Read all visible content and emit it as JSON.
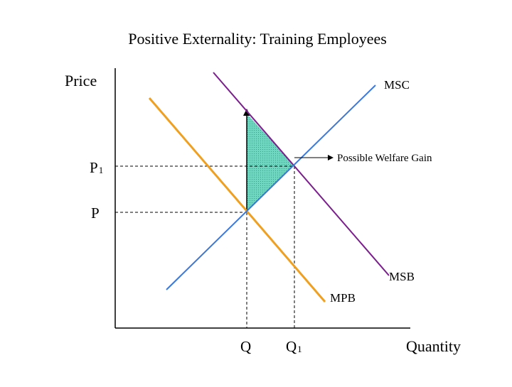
{
  "title": "Positive Externality: Training Employees",
  "axes": {
    "y_label": "Price",
    "x_label": "Quantity"
  },
  "ticks": {
    "p": "P",
    "p1_main": "P",
    "p1_sub": "1",
    "q": "Q",
    "q1_main": "Q",
    "q1_sub": "1"
  },
  "curves": {
    "msc": {
      "label": "MSC",
      "color": "#3b78d8"
    },
    "msb": {
      "label": "MSB",
      "color": "#7a1f8c"
    },
    "mpb": {
      "label": "MPB",
      "color": "#f0a020"
    }
  },
  "annotation": {
    "label": "Possible Welfare Gain"
  },
  "colors": {
    "welfare_fill": "#6fd6c0",
    "axes": "#000000",
    "guides": "#000000"
  }
}
